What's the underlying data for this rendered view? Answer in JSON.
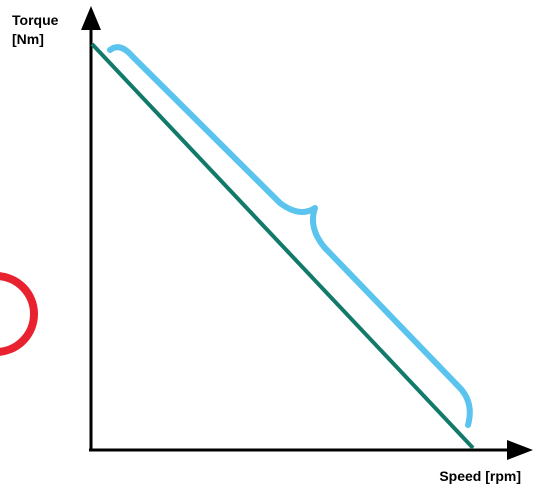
{
  "y_axis": {
    "label_line1": "Torque",
    "label_line2": "[Nm]"
  },
  "x_axis": {
    "label": "Speed [rpm]"
  },
  "colors": {
    "axis": "#000000",
    "torque_line": "#127a6a",
    "brace": "#5bc4ee",
    "circle": "#e8222e",
    "background": "#ffffff"
  }
}
